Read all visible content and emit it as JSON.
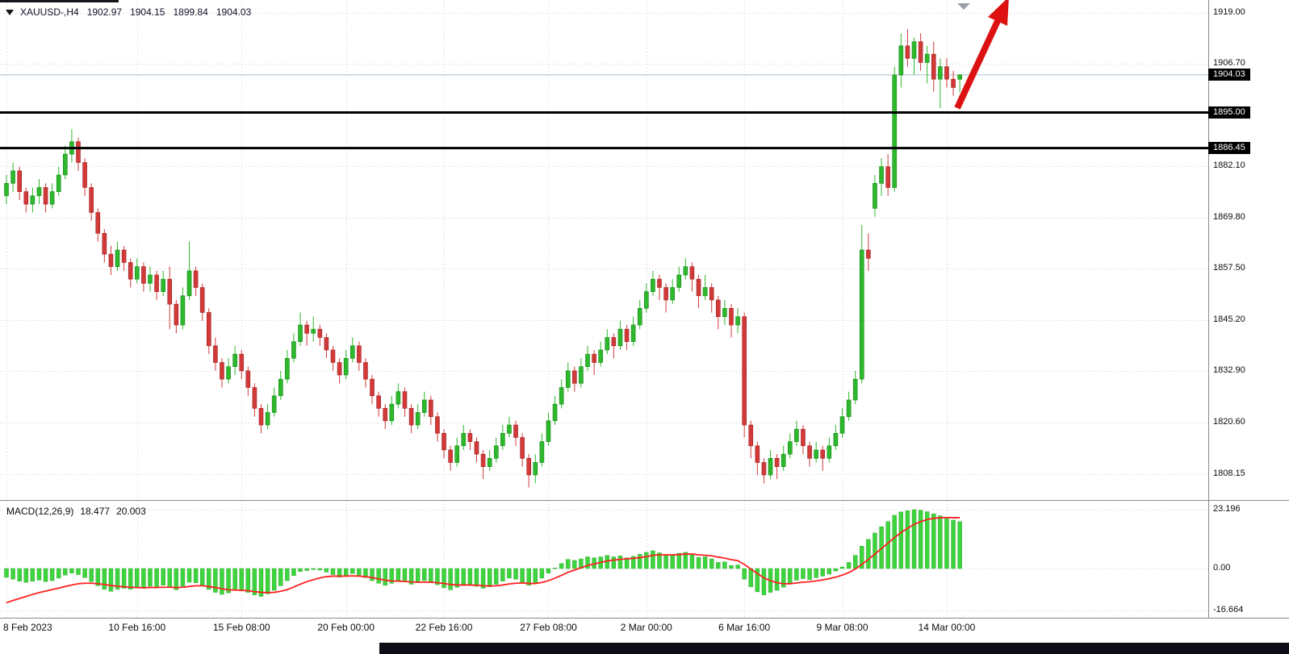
{
  "header": {
    "symbol_period": "XAUUSD-,H4",
    "open": "1902.97",
    "high": "1904.15",
    "low": "1899.84",
    "close": "1904.03"
  },
  "macd_panel": {
    "label": "MACD(12,26,9)",
    "macd_value": "18.477",
    "signal_value": "20.003",
    "axis_labels": [
      {
        "text": "23.196",
        "value": 23.196
      },
      {
        "text": "0.00",
        "value": 0
      },
      {
        "text": "-16.664",
        "value": -16.664
      }
    ]
  },
  "price_axis": {
    "grid_labels": [
      {
        "text": "1919.00",
        "value": 1919.0
      },
      {
        "text": "1906.70",
        "value": 1906.7
      },
      {
        "text": "1882.10",
        "value": 1882.1
      },
      {
        "text": "1869.80",
        "value": 1869.8
      },
      {
        "text": "1857.50",
        "value": 1857.5
      },
      {
        "text": "1845.20",
        "value": 1845.2
      },
      {
        "text": "1832.90",
        "value": 1832.9
      },
      {
        "text": "1820.60",
        "value": 1820.6
      },
      {
        "text": "1808.15",
        "value": 1808.15
      }
    ],
    "badge_labels": [
      {
        "text": "1904.03",
        "value": 1904.03,
        "kind": "current-price"
      },
      {
        "text": "1895.00",
        "value": 1895.0,
        "kind": "hline"
      },
      {
        "text": "1886.45",
        "value": 1886.45,
        "kind": "hline"
      }
    ]
  },
  "time_axis": [
    {
      "text": "8 Feb 2023",
      "index": 0
    },
    {
      "text": "10 Feb 16:00",
      "index": 20
    },
    {
      "text": "15 Feb 08:00",
      "index": 36
    },
    {
      "text": "20 Feb 00:00",
      "index": 52
    },
    {
      "text": "22 Feb 16:00",
      "index": 67
    },
    {
      "text": "27 Feb 08:00",
      "index": 83
    },
    {
      "text": "2 Mar 00:00",
      "index": 98
    },
    {
      "text": "6 Mar 16:00",
      "index": 113
    },
    {
      "text": "9 Mar 08:00",
      "index": 128
    },
    {
      "text": "14 Mar 00:00",
      "index": 144
    }
  ],
  "annotations": {
    "arrow": {
      "color": "#dd1111",
      "direction": "up-right"
    },
    "shift_marker_color": "#9aa0a6"
  },
  "colors": {
    "up": "#2db82d",
    "up_stroke": "#118811",
    "down": "#d23a3a",
    "down_stroke": "#a02020",
    "grid": "#cfcfcf",
    "hline": "#000000",
    "current_price_line": "#a8c0d4",
    "histogram": "#3ed43e",
    "signal": "#ff2020",
    "badge_bg": "#000000",
    "badge_fg": "#ffffff"
  },
  "chart_data": {
    "type": "candlestick",
    "title": "XAUUSD-,H4",
    "symbol": "XAUUSD-",
    "timeframe": "H4",
    "ylabel": "price",
    "ylim": [
      1802,
      1922
    ],
    "grid": true,
    "hlines": [
      1895.0,
      1886.45
    ],
    "current_price": 1904.03,
    "last_candle": {
      "open": 1902.97,
      "high": 1904.15,
      "low": 1899.84,
      "close": 1904.03
    },
    "candles_ohlc": [
      [
        1875,
        1880,
        1873,
        1878
      ],
      [
        1878,
        1883,
        1876,
        1881
      ],
      [
        1881,
        1882,
        1874,
        1876
      ],
      [
        1876,
        1877,
        1871,
        1873
      ],
      [
        1873,
        1877,
        1871,
        1875
      ],
      [
        1875,
        1879,
        1873,
        1877
      ],
      [
        1877,
        1878,
        1871,
        1873
      ],
      [
        1873,
        1878,
        1872,
        1876
      ],
      [
        1876,
        1882,
        1875,
        1880
      ],
      [
        1880,
        1887,
        1879,
        1885
      ],
      [
        1885,
        1891,
        1883,
        1888
      ],
      [
        1888,
        1889,
        1881,
        1883
      ],
      [
        1883,
        1884,
        1875,
        1877
      ],
      [
        1877,
        1878,
        1869,
        1871
      ],
      [
        1871,
        1872,
        1864,
        1866
      ],
      [
        1866,
        1867,
        1859,
        1861
      ],
      [
        1861,
        1863,
        1856,
        1858
      ],
      [
        1858,
        1864,
        1857,
        1862
      ],
      [
        1862,
        1863,
        1857,
        1859
      ],
      [
        1859,
        1860,
        1853,
        1855
      ],
      [
        1855,
        1860,
        1854,
        1858
      ],
      [
        1858,
        1859,
        1852,
        1854
      ],
      [
        1854,
        1858,
        1852,
        1856
      ],
      [
        1856,
        1857,
        1850,
        1852
      ],
      [
        1852,
        1857,
        1851,
        1855
      ],
      [
        1855,
        1858,
        1843,
        1849
      ],
      [
        1849,
        1850,
        1842,
        1844
      ],
      [
        1844,
        1853,
        1843,
        1851
      ],
      [
        1851,
        1864,
        1850,
        1857
      ],
      [
        1857,
        1858,
        1851,
        1853
      ],
      [
        1853,
        1854,
        1845,
        1847
      ],
      [
        1847,
        1848,
        1837,
        1839
      ],
      [
        1839,
        1841,
        1833,
        1835
      ],
      [
        1835,
        1836,
        1829,
        1831
      ],
      [
        1831,
        1836,
        1830,
        1834
      ],
      [
        1834,
        1839,
        1832,
        1837
      ],
      [
        1837,
        1838,
        1831,
        1833
      ],
      [
        1833,
        1834,
        1827,
        1829
      ],
      [
        1829,
        1830,
        1822,
        1824
      ],
      [
        1824,
        1825,
        1818,
        1820
      ],
      [
        1820,
        1825,
        1819,
        1823
      ],
      [
        1823,
        1829,
        1822,
        1827
      ],
      [
        1827,
        1833,
        1826,
        1831
      ],
      [
        1831,
        1838,
        1830,
        1836
      ],
      [
        1836,
        1842,
        1835,
        1840
      ],
      [
        1840,
        1847,
        1839,
        1844
      ],
      [
        1844,
        1845,
        1839,
        1842
      ],
      [
        1842,
        1846,
        1840,
        1843
      ],
      [
        1843,
        1844,
        1839,
        1841
      ],
      [
        1841,
        1842,
        1836,
        1838
      ],
      [
        1838,
        1839,
        1833,
        1835
      ],
      [
        1835,
        1836,
        1830,
        1832
      ],
      [
        1832,
        1838,
        1831,
        1836
      ],
      [
        1836,
        1841,
        1835,
        1839
      ],
      [
        1839,
        1840,
        1833,
        1835
      ],
      [
        1835,
        1836,
        1829,
        1831
      ],
      [
        1831,
        1832,
        1825,
        1827
      ],
      [
        1827,
        1828,
        1822,
        1824
      ],
      [
        1824,
        1825,
        1819,
        1821
      ],
      [
        1821,
        1827,
        1820,
        1825
      ],
      [
        1825,
        1830,
        1824,
        1828
      ],
      [
        1828,
        1829,
        1822,
        1824
      ],
      [
        1824,
        1825,
        1818,
        1820
      ],
      [
        1820,
        1825,
        1819,
        1823
      ],
      [
        1823,
        1828,
        1822,
        1826
      ],
      [
        1826,
        1827,
        1820,
        1822
      ],
      [
        1822,
        1823,
        1816,
        1818
      ],
      [
        1818,
        1819,
        1812,
        1814
      ],
      [
        1814,
        1815,
        1809,
        1811
      ],
      [
        1811,
        1817,
        1810,
        1815
      ],
      [
        1815,
        1820,
        1814,
        1818
      ],
      [
        1818,
        1819,
        1814,
        1816
      ],
      [
        1816,
        1817,
        1811,
        1813
      ],
      [
        1813,
        1814,
        1807,
        1810
      ],
      [
        1810,
        1814,
        1809,
        1812
      ],
      [
        1812,
        1817,
        1811,
        1815
      ],
      [
        1815,
        1820,
        1814,
        1818
      ],
      [
        1818,
        1822,
        1817,
        1820
      ],
      [
        1820,
        1821,
        1815,
        1817
      ],
      [
        1817,
        1818,
        1810,
        1812
      ],
      [
        1812,
        1813,
        1805,
        1808
      ],
      [
        1808,
        1813,
        1806,
        1811
      ],
      [
        1811,
        1818,
        1810,
        1816
      ],
      [
        1816,
        1823,
        1815,
        1821
      ],
      [
        1821,
        1827,
        1820,
        1825
      ],
      [
        1825,
        1831,
        1824,
        1829
      ],
      [
        1829,
        1835,
        1828,
        1833
      ],
      [
        1833,
        1834,
        1828,
        1830
      ],
      [
        1830,
        1836,
        1829,
        1834
      ],
      [
        1834,
        1839,
        1833,
        1837
      ],
      [
        1837,
        1838,
        1832,
        1835
      ],
      [
        1835,
        1840,
        1834,
        1838
      ],
      [
        1838,
        1843,
        1837,
        1841
      ],
      [
        1841,
        1842,
        1836,
        1839
      ],
      [
        1839,
        1845,
        1838,
        1843
      ],
      [
        1843,
        1844,
        1838,
        1840
      ],
      [
        1840,
        1846,
        1839,
        1844
      ],
      [
        1844,
        1850,
        1843,
        1848
      ],
      [
        1848,
        1854,
        1847,
        1852
      ],
      [
        1852,
        1857,
        1851,
        1855
      ],
      [
        1855,
        1856,
        1850,
        1853
      ],
      [
        1853,
        1854,
        1847,
        1850
      ],
      [
        1850,
        1855,
        1849,
        1853
      ],
      [
        1853,
        1858,
        1852,
        1856
      ],
      [
        1856,
        1860,
        1855,
        1858
      ],
      [
        1858,
        1859,
        1852,
        1855
      ],
      [
        1855,
        1856,
        1848,
        1851
      ],
      [
        1851,
        1856,
        1850,
        1853
      ],
      [
        1853,
        1854,
        1847,
        1850
      ],
      [
        1850,
        1851,
        1843,
        1846
      ],
      [
        1846,
        1850,
        1844,
        1848
      ],
      [
        1848,
        1849,
        1841,
        1844
      ],
      [
        1844,
        1848,
        1842,
        1846
      ],
      [
        1846,
        1847,
        1817,
        1820
      ],
      [
        1820,
        1821,
        1812,
        1815
      ],
      [
        1815,
        1816,
        1808,
        1811
      ],
      [
        1811,
        1812,
        1806,
        1808
      ],
      [
        1808,
        1814,
        1807,
        1812
      ],
      [
        1812,
        1813,
        1807,
        1810
      ],
      [
        1810,
        1815,
        1809,
        1813
      ],
      [
        1813,
        1818,
        1812,
        1816
      ],
      [
        1816,
        1821,
        1815,
        1819
      ],
      [
        1819,
        1820,
        1813,
        1815
      ],
      [
        1815,
        1816,
        1810,
        1812
      ],
      [
        1812,
        1816,
        1811,
        1814
      ],
      [
        1814,
        1815,
        1809,
        1812
      ],
      [
        1812,
        1817,
        1811,
        1815
      ],
      [
        1815,
        1820,
        1814,
        1818
      ],
      [
        1818,
        1824,
        1817,
        1822
      ],
      [
        1822,
        1828,
        1821,
        1826
      ],
      [
        1826,
        1833,
        1825,
        1831
      ],
      [
        1831,
        1868,
        1830,
        1862
      ],
      [
        1862,
        1866,
        1857,
        1860
      ],
      [
        1872,
        1880,
        1870,
        1878
      ],
      [
        1878,
        1884,
        1875,
        1882
      ],
      [
        1882,
        1885,
        1875,
        1877
      ],
      [
        1877,
        1906,
        1876,
        1904
      ],
      [
        1904,
        1914,
        1901,
        1911
      ],
      [
        1911,
        1915,
        1906,
        1908
      ],
      [
        1908,
        1913,
        1904,
        1912
      ],
      [
        1912,
        1914,
        1905,
        1907
      ],
      [
        1907,
        1911,
        1902,
        1909
      ],
      [
        1909,
        1912,
        1900,
        1903
      ],
      [
        1903,
        1908,
        1896,
        1906
      ],
      [
        1906,
        1908,
        1901,
        1903
      ],
      [
        1903,
        1905,
        1899,
        1901
      ],
      [
        1902.97,
        1904.15,
        1899.84,
        1904.03
      ]
    ],
    "macd": {
      "ylim": [
        -19.4,
        26.7
      ],
      "last_macd": 18.477,
      "last_signal": 20.003,
      "histogram": [
        -3.5,
        -4.2,
        -5.0,
        -5.5,
        -5.0,
        -4.6,
        -5.2,
        -4.8,
        -3.8,
        -2.6,
        -1.8,
        -2.4,
        -3.6,
        -5.2,
        -6.8,
        -8.2,
        -9.0,
        -8.2,
        -7.8,
        -8.2,
        -7.4,
        -7.8,
        -7.0,
        -7.4,
        -6.6,
        -7.4,
        -8.4,
        -7.0,
        -5.4,
        -5.6,
        -6.6,
        -8.2,
        -9.4,
        -10.2,
        -9.6,
        -8.6,
        -8.8,
        -9.4,
        -10.4,
        -11.0,
        -10.0,
        -8.6,
        -6.8,
        -4.8,
        -2.8,
        -1.2,
        -0.8,
        -0.4,
        -0.6,
        -1.4,
        -2.4,
        -3.4,
        -2.8,
        -2.0,
        -2.6,
        -3.6,
        -4.8,
        -5.8,
        -6.6,
        -5.8,
        -4.8,
        -5.2,
        -6.2,
        -5.6,
        -4.8,
        -5.4,
        -6.4,
        -7.6,
        -8.4,
        -7.4,
        -6.2,
        -6.4,
        -7.0,
        -7.8,
        -7.2,
        -6.2,
        -5.0,
        -3.8,
        -4.2,
        -5.4,
        -6.6,
        -5.6,
        -3.8,
        -1.8,
        0.2,
        2.0,
        3.6,
        3.2,
        3.8,
        4.6,
        4.2,
        4.6,
        5.2,
        4.6,
        5.0,
        4.2,
        4.8,
        5.6,
        6.4,
        7.0,
        6.2,
        5.2,
        5.4,
        6.0,
        6.4,
        5.6,
        4.4,
        4.6,
        3.8,
        2.4,
        2.6,
        1.2,
        1.4,
        -4.2,
        -7.2,
        -9.2,
        -10.4,
        -9.4,
        -8.6,
        -7.4,
        -6.2,
        -4.6,
        -4.0,
        -4.4,
        -3.6,
        -3.0,
        -2.2,
        -1.0,
        0.6,
        2.4,
        5.2,
        8.8,
        11.5,
        14.0,
        16.5,
        18.5,
        21.0,
        22.3,
        22.8,
        23.196,
        23.0,
        22.4,
        21.6,
        20.8,
        19.9,
        19.1,
        18.477
      ],
      "signal": [
        -13.5,
        -12.6,
        -11.8,
        -11.0,
        -10.2,
        -9.5,
        -8.9,
        -8.3,
        -7.7,
        -7.1,
        -6.5,
        -6.0,
        -5.8,
        -5.8,
        -6.0,
        -6.3,
        -6.7,
        -7.0,
        -7.2,
        -7.4,
        -7.5,
        -7.6,
        -7.5,
        -7.5,
        -7.4,
        -7.4,
        -7.5,
        -7.4,
        -7.1,
        -6.8,
        -6.8,
        -7.1,
        -7.5,
        -8.0,
        -8.4,
        -8.5,
        -8.6,
        -8.8,
        -9.1,
        -9.4,
        -9.5,
        -9.4,
        -9.0,
        -8.3,
        -7.3,
        -6.2,
        -5.2,
        -4.4,
        -3.7,
        -3.2,
        -3.0,
        -3.0,
        -3.0,
        -2.9,
        -3.0,
        -3.2,
        -3.6,
        -4.1,
        -4.6,
        -4.9,
        -5.0,
        -5.1,
        -5.3,
        -5.4,
        -5.4,
        -5.4,
        -5.6,
        -5.9,
        -6.3,
        -6.5,
        -6.5,
        -6.5,
        -6.6,
        -6.8,
        -6.9,
        -6.8,
        -6.5,
        -6.1,
        -5.8,
        -5.7,
        -5.9,
        -5.9,
        -5.5,
        -4.8,
        -3.8,
        -2.7,
        -1.5,
        -0.6,
        0.3,
        1.2,
        1.8,
        2.4,
        3.0,
        3.3,
        3.6,
        3.8,
        4.0,
        4.3,
        4.7,
        5.2,
        5.4,
        5.4,
        5.4,
        5.5,
        5.7,
        5.7,
        5.4,
        5.2,
        5.0,
        4.5,
        4.1,
        3.5,
        3.1,
        1.6,
        -0.2,
        -2.0,
        -3.7,
        -4.8,
        -5.6,
        -6.0,
        -6.0,
        -5.7,
        -5.4,
        -5.2,
        -4.9,
        -4.5,
        -4.0,
        -3.4,
        -2.6,
        -1.6,
        -0.2,
        1.6,
        3.6,
        5.7,
        7.9,
        10.0,
        12.2,
        14.2,
        15.9,
        17.4,
        18.5,
        19.3,
        19.8,
        20.0,
        20.1,
        20.05,
        20.003
      ]
    }
  }
}
